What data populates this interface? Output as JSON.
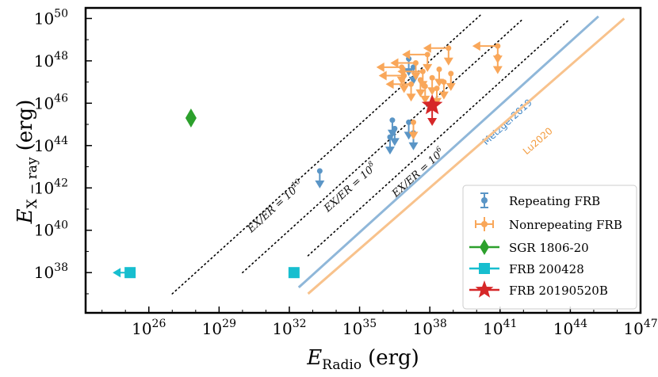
{
  "chart_data": {
    "type": "scatter",
    "xlabel": "E_Radio (erg)",
    "ylabel": "E_X-ray (erg)",
    "xlabel_parts": {
      "E": "E",
      "sub": "Radio",
      "unit": "(erg)"
    },
    "ylabel_parts": {
      "E": "E",
      "sub": "X − ray",
      "unit": "(erg)"
    },
    "xscale": "log",
    "yscale": "log",
    "xlim_exp": [
      23.3,
      47
    ],
    "ylim_exp": [
      36.1,
      50.5
    ],
    "x_ticks": [
      {
        "base": "10",
        "exp": "26",
        "value": 26
      },
      {
        "base": "10",
        "exp": "29",
        "value": 29
      },
      {
        "base": "10",
        "exp": "32",
        "value": 32
      },
      {
        "base": "10",
        "exp": "35",
        "value": 35
      },
      {
        "base": "10",
        "exp": "38",
        "value": 38
      },
      {
        "base": "10",
        "exp": "41",
        "value": 41
      },
      {
        "base": "10",
        "exp": "44",
        "value": 44
      },
      {
        "base": "10",
        "exp": "47",
        "value": 47
      }
    ],
    "y_ticks": [
      {
        "base": "10",
        "exp": "38",
        "value": 38
      },
      {
        "base": "10",
        "exp": "40",
        "value": 40
      },
      {
        "base": "10",
        "exp": "42",
        "value": 42
      },
      {
        "base": "10",
        "exp": "44",
        "value": 44
      },
      {
        "base": "10",
        "exp": "46",
        "value": 46
      },
      {
        "base": "10",
        "exp": "48",
        "value": 48
      },
      {
        "base": "10",
        "exp": "50",
        "value": 50
      }
    ],
    "ratio_lines": [
      {
        "label": "E_X/E_R = 10^10",
        "label_text": "EX/ER = 10",
        "label_exp": "10",
        "log_ratio": 10,
        "x_range": [
          27,
          40.2
        ],
        "label_at": [
          31.5,
          41.0
        ]
      },
      {
        "label": "E_X/E_R = 10^8",
        "label_text": "EX/ER = 10",
        "label_exp": "8",
        "log_ratio": 8,
        "x_range": [
          30,
          42
        ],
        "label_at": [
          34.7,
          41.9
        ]
      },
      {
        "label": "E_X/E_R = 10^6",
        "label_text": "EX/ER = 10",
        "label_exp": "6",
        "log_ratio": 6,
        "x_range": [
          32.8,
          43.9
        ],
        "label_at": [
          37.6,
          42.6
        ]
      }
    ],
    "model_lines": [
      {
        "name": "Metzger2019",
        "color": "#8fb7d9",
        "points": [
          [
            32.4,
            37.3
          ],
          [
            45.2,
            50.1
          ]
        ],
        "label_at": [
          41.4,
          45.0
        ]
      },
      {
        "name": "Lu2020",
        "color": "#f8c28c",
        "points": [
          [
            32.8,
            37.0
          ],
          [
            46.3,
            50.0
          ]
        ],
        "label_at": [
          42.7,
          44.1
        ]
      }
    ],
    "series": [
      {
        "name": "Repeating FRB",
        "color": "#5a95c6",
        "marker": "circle",
        "points": [
          {
            "x": 37.1,
            "y": 48.1,
            "upper_limit": true
          },
          {
            "x": 37.3,
            "y": 47.7,
            "upper_limit": true
          },
          {
            "x": 36.4,
            "y": 45.2,
            "upper_limit": true
          },
          {
            "x": 36.5,
            "y": 44.8,
            "upper_limit": true
          },
          {
            "x": 36.3,
            "y": 44.4,
            "upper_limit": true
          },
          {
            "x": 37.1,
            "y": 45.1,
            "upper_limit": true
          },
          {
            "x": 37.3,
            "y": 44.6,
            "upper_limit": true
          },
          {
            "x": 33.3,
            "y": 42.8,
            "upper_limit": true
          }
        ]
      },
      {
        "name": "Nonrepeating FRB",
        "color": "#f9a75a",
        "marker": "circle",
        "points": [
          {
            "x": 38.8,
            "y": 48.6,
            "upper_limit": true,
            "x_upper": true
          },
          {
            "x": 40.9,
            "y": 48.7,
            "upper_limit": true,
            "x_upper": true
          },
          {
            "x": 40.9,
            "y": 48.2,
            "upper_limit": true
          },
          {
            "x": 37.9,
            "y": 48.3,
            "upper_limit": true,
            "x_upper": true
          },
          {
            "x": 37.4,
            "y": 47.9,
            "upper_limit": true,
            "x_upper": true
          },
          {
            "x": 36.8,
            "y": 47.7,
            "upper_limit": true,
            "x_upper": true
          },
          {
            "x": 37.7,
            "y": 47.5,
            "upper_limit": true,
            "x_upper": true
          },
          {
            "x": 36.9,
            "y": 47.3,
            "upper_limit": true,
            "x_upper": true
          },
          {
            "x": 37.6,
            "y": 47.1,
            "upper_limit": true
          },
          {
            "x": 38.4,
            "y": 47.6,
            "upper_limit": true
          },
          {
            "x": 38.9,
            "y": 47.4,
            "upper_limit": true
          },
          {
            "x": 38.1,
            "y": 47.2,
            "upper_limit": true
          },
          {
            "x": 38.6,
            "y": 47.0,
            "upper_limit": true
          },
          {
            "x": 37.2,
            "y": 46.9,
            "upper_limit": true,
            "x_upper": true
          },
          {
            "x": 37.8,
            "y": 46.8,
            "upper_limit": true
          },
          {
            "x": 38.3,
            "y": 46.7,
            "upper_limit": true
          },
          {
            "x": 37.3,
            "y": 45.1,
            "upper_limit": true
          }
        ]
      },
      {
        "name": "SGR 1806-20",
        "color": "#2ca02c",
        "marker": "diamond",
        "points": [
          {
            "x": 27.8,
            "y": 45.3
          }
        ]
      },
      {
        "name": "FRB 200428",
        "color": "#17becf",
        "marker": "square",
        "points": [
          {
            "x": 25.2,
            "y": 38.0,
            "x_upper": true
          },
          {
            "x": 32.2,
            "y": 38.0
          }
        ]
      },
      {
        "name": "FRB 20190520B",
        "color": "#d62728",
        "marker": "star",
        "points": [
          {
            "x": 38.1,
            "y": 45.9,
            "upper_limit": true
          }
        ]
      }
    ],
    "legend": {
      "placement": "lower-right",
      "entries": [
        "Repeating FRB",
        "Nonrepeating FRB",
        "SGR 1806-20",
        "FRB 200428",
        "FRB 20190520B"
      ]
    }
  }
}
